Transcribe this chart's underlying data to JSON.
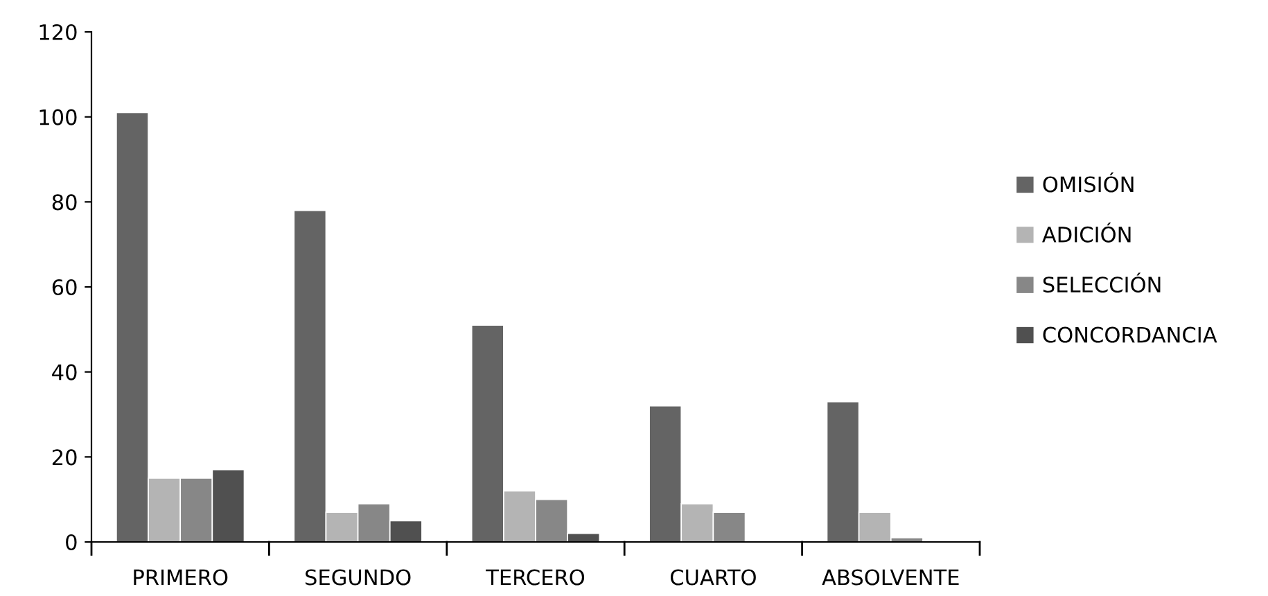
{
  "chart_data": {
    "type": "bar",
    "categories": [
      "PRIMERO",
      "SEGUNDO",
      "TERCERO",
      "CUARTO",
      "ABSOLVENTE"
    ],
    "series": [
      {
        "name": "OMISIÓN",
        "color": "#646464",
        "values": [
          101,
          78,
          51,
          32,
          33
        ]
      },
      {
        "name": "ADICIÓN",
        "color": "#b4b4b4",
        "values": [
          15,
          7,
          12,
          9,
          7
        ]
      },
      {
        "name": "SELECCIÓN",
        "color": "#878787",
        "values": [
          15,
          9,
          10,
          7,
          1
        ]
      },
      {
        "name": "CONCORDANCIA",
        "color": "#505050",
        "values": [
          17,
          5,
          2,
          0,
          0
        ]
      }
    ],
    "ylim": [
      0,
      120
    ],
    "yticks": [
      0,
      20,
      40,
      60,
      80,
      100,
      120
    ],
    "grid": false,
    "legend": "right"
  }
}
